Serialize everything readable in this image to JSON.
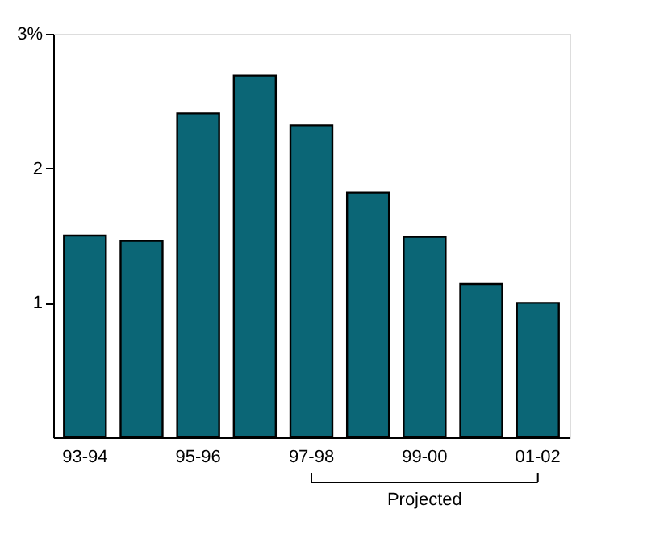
{
  "chart_data": {
    "type": "bar",
    "categories": [
      "93-94",
      null,
      "95-96",
      null,
      "97-98",
      null,
      "99-00",
      null,
      "01-02"
    ],
    "values": [
      1.5,
      1.46,
      2.41,
      2.69,
      2.32,
      1.82,
      1.49,
      1.14,
      1.0
    ],
    "color": "#0b6676",
    "ylim": [
      0,
      3
    ],
    "yticks": [
      1,
      2,
      {
        "value": 3,
        "label": "3%"
      }
    ],
    "grid": false,
    "annotations": [
      "Projected"
    ]
  }
}
